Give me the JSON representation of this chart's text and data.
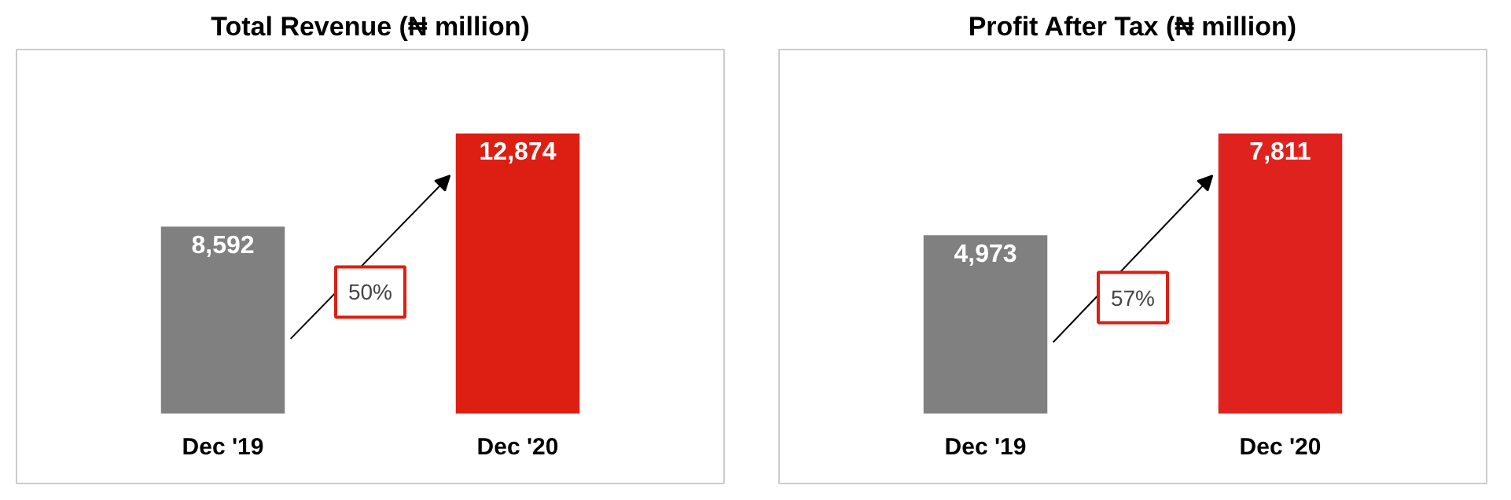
{
  "chart_data": [
    {
      "type": "bar",
      "title": "Total Revenue (₦ million)",
      "categories": [
        "Dec '19",
        "Dec '20"
      ],
      "values": [
        8592,
        12874
      ],
      "colors": [
        "#808080",
        "#dc1f12"
      ],
      "value_labels": [
        "8,592",
        "12,874"
      ],
      "annotations": [
        "50%"
      ]
    },
    {
      "type": "bar",
      "title": "Profit After Tax (₦ million)",
      "categories": [
        "Dec '19",
        "Dec '20"
      ],
      "values": [
        4973,
        7811
      ],
      "colors": [
        "#808080",
        "#e0221e"
      ],
      "value_labels": [
        "4,973",
        "7,811"
      ],
      "annotations": [
        "57%"
      ]
    }
  ]
}
